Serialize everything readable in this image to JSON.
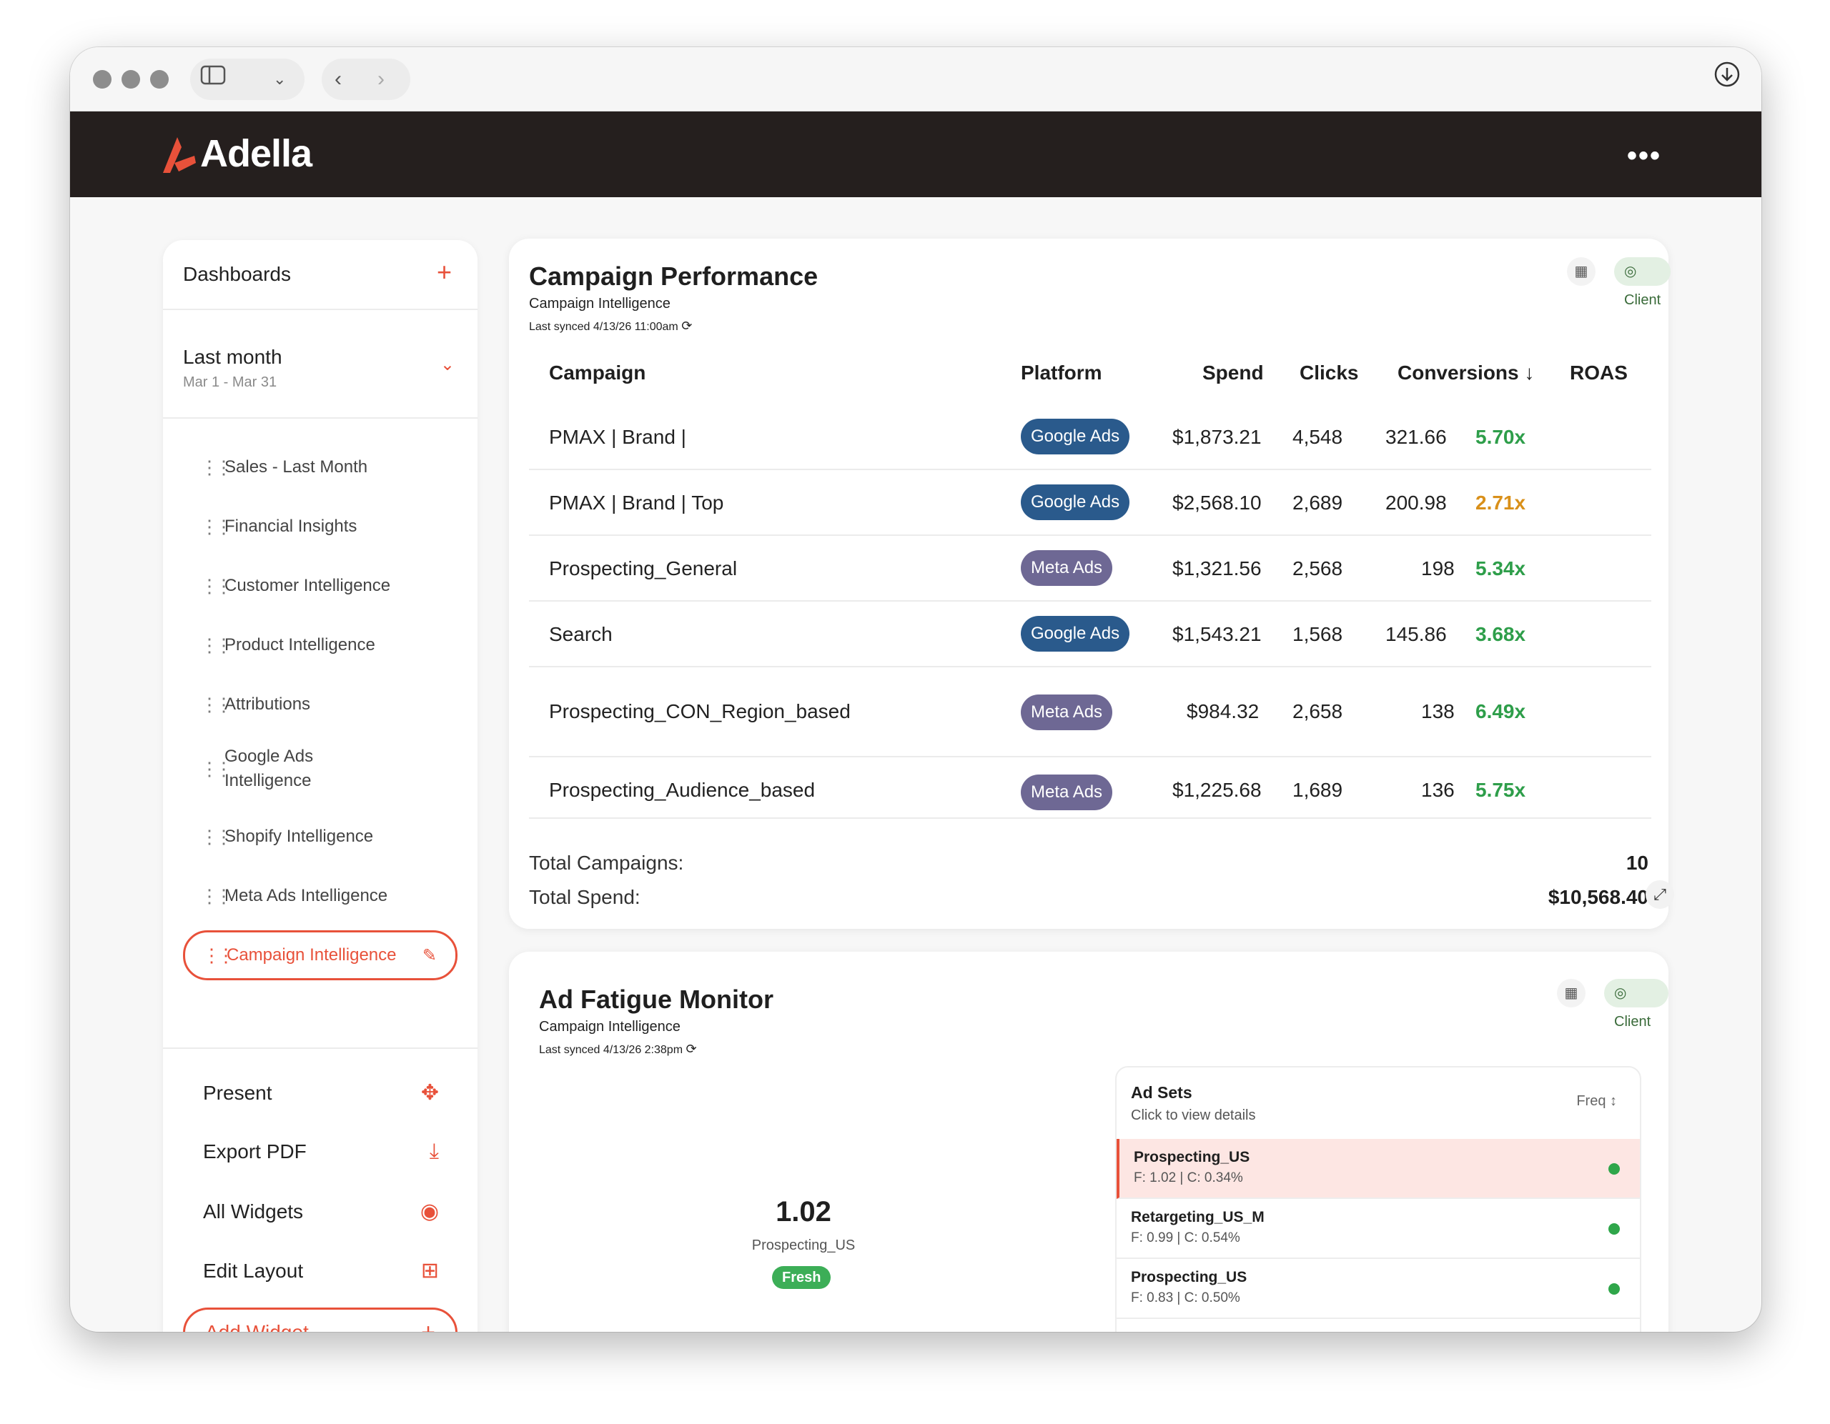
{
  "app": {
    "name": "Adella",
    "brand_color": "#e8513a"
  },
  "sidebar": {
    "header": "Dashboards",
    "range": {
      "title": "Last month",
      "subtitle": "Mar 1 - Mar 31"
    },
    "items": [
      {
        "label": "Sales - Last Month"
      },
      {
        "label": "Financial Insights"
      },
      {
        "label": "Customer Intelligence"
      },
      {
        "label": "Product Intelligence"
      },
      {
        "label": "Attributions"
      },
      {
        "label": "Google Ads\nIntelligence"
      },
      {
        "label": "Shopify Intelligence"
      },
      {
        "label": "Meta Ads Intelligence"
      },
      {
        "label": "Campaign Intelligence"
      }
    ],
    "actions": [
      {
        "label": "Present",
        "icon": "present-icon"
      },
      {
        "label": "Export PDF",
        "icon": "download-icon"
      },
      {
        "label": "All Widgets",
        "icon": "eye-icon"
      },
      {
        "label": "Edit Layout",
        "icon": "edit-layout-icon"
      }
    ],
    "add_widget": "Add Widget"
  },
  "campaign": {
    "title": "Campaign Performance",
    "subtitle": "Campaign Intelligence",
    "synced": "Last synced 4/13/26 11:00am",
    "client": "Client",
    "headers": {
      "campaign": "Campaign",
      "platform": "Platform",
      "spend": "Spend",
      "clicks": "Clicks",
      "conversions": "Conversions ↓",
      "roas": "ROAS"
    },
    "rows": [
      {
        "campaign": "PMAX | Brand |",
        "platform": "Google Ads",
        "spend": "$1,873.21",
        "clicks": "4,548",
        "conversions": "321.66",
        "roas": "5.70x",
        "roas_color": "#2e9e4a"
      },
      {
        "campaign": "PMAX | Brand | Top",
        "platform": "Google Ads",
        "spend": "$2,568.10",
        "clicks": "2,689",
        "conversions": "200.98",
        "roas": "2.71x",
        "roas_color": "#d9901a"
      },
      {
        "campaign": "Prospecting_General",
        "platform": "Meta Ads",
        "spend": "$1,321.56",
        "clicks": "2,568",
        "conversions": "198",
        "roas": "5.34x",
        "roas_color": "#2e9e4a"
      },
      {
        "campaign": "Search",
        "platform": "Google Ads",
        "spend": "$1,543.21",
        "clicks": "1,568",
        "conversions": "145.86",
        "roas": "3.68x",
        "roas_color": "#2e9e4a"
      },
      {
        "campaign": "Prospecting_CON_Region_based",
        "platform": "Meta Ads",
        "spend": "$984.32",
        "clicks": "2,658",
        "conversions": "138",
        "roas": "6.49x",
        "roas_color": "#2e9e4a"
      },
      {
        "campaign": "Prospecting_Audience_based",
        "platform": "Meta Ads",
        "spend": "$1,225.68",
        "clicks": "1,689",
        "conversions": "136",
        "roas": "5.75x",
        "roas_color": "#2e9e4a"
      }
    ],
    "totals": {
      "campaigns_label": "Total Campaigns:",
      "campaigns_value": "10",
      "spend_label": "Total Spend:",
      "spend_value": "$10,568.40"
    }
  },
  "fatigue": {
    "title": "Ad Fatigue Monitor",
    "subtitle": "Campaign Intelligence",
    "synced": "Last synced 4/13/26 2:38pm",
    "client": "Client",
    "focus": {
      "value": "1.02",
      "name": "Prospecting_US",
      "status": "Fresh"
    },
    "adsets": {
      "title": "Ad Sets",
      "subtitle": "Click to view details",
      "sort": "Freq ↕",
      "rows": [
        {
          "name": "Prospecting_US",
          "meta": "F: 1.02 | C: 0.34%"
        },
        {
          "name": "Retargeting_US_M",
          "meta": "F: 0.99 | C: 0.54%"
        },
        {
          "name": "Prospecting_US",
          "meta": "F: 0.83 | C: 0.50%"
        }
      ]
    }
  }
}
